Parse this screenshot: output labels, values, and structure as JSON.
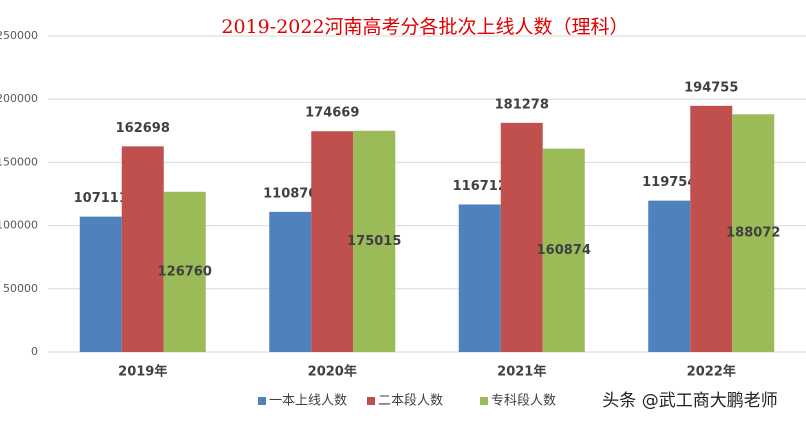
{
  "chart_data": {
    "type": "bar",
    "title": "2019-2022河南高考分各批次上线人数（理科）",
    "categories": [
      "2019年",
      "2020年",
      "2021年",
      "2022年"
    ],
    "series": [
      {
        "name": "一本上线人数",
        "color": "#4f81bd",
        "values": [
          107111,
          110870,
          116712,
          119754
        ]
      },
      {
        "name": "二本段人数",
        "color": "#c0504d",
        "values": [
          162698,
          174669,
          181278,
          194755
        ]
      },
      {
        "name": "专科段人数",
        "color": "#9bbb59",
        "values": [
          126760,
          175015,
          160874,
          188072
        ]
      }
    ],
    "ylim": [
      0,
      250000
    ],
    "yticks": [
      0,
      50000,
      100000,
      150000,
      200000,
      250000
    ],
    "grid": true
  },
  "watermark": "头条 @武工商大鹏老师"
}
